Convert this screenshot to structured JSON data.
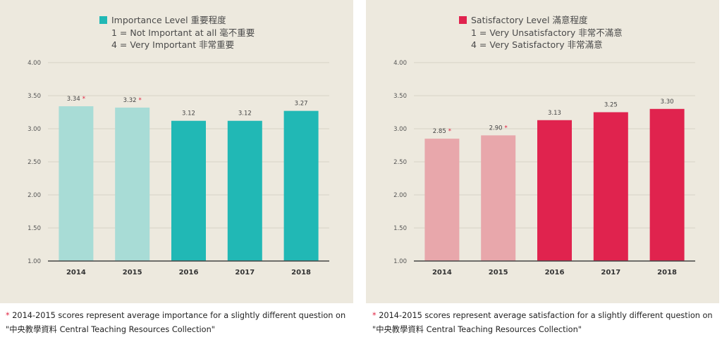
{
  "chart_data": [
    {
      "type": "bar",
      "legend_title": "Importance Level 重要程度",
      "legend_lines": [
        "1 = Not Important at all 毫不重要",
        "4 = Very Important 非常重要"
      ],
      "legend_placement": "top-center",
      "categories": [
        "2014",
        "2015",
        "2016",
        "2017",
        "2018"
      ],
      "values": [
        3.34,
        3.32,
        3.12,
        3.12,
        3.27
      ],
      "value_labels": [
        "3.34",
        "3.32",
        "3.12",
        "3.12",
        "3.27"
      ],
      "asterisk": [
        true,
        true,
        false,
        false,
        false
      ],
      "ylim": [
        1.0,
        4.0
      ],
      "yticks": [
        "1.00",
        "1.50",
        "2.00",
        "2.50",
        "3.00",
        "3.50",
        "4.00"
      ],
      "grid": true,
      "colors": {
        "primary": "#21b8b5",
        "faded": "#a8dcd6"
      },
      "xlabel": "",
      "ylabel": ""
    },
    {
      "type": "bar",
      "legend_title": "Satisfactory Level 滿意程度",
      "legend_lines": [
        "1 = Very Unsatisfactory 非常不滿意",
        "4 = Very Satisfactory 非常滿意"
      ],
      "legend_placement": "top-center",
      "categories": [
        "2014",
        "2015",
        "2016",
        "2017",
        "2018"
      ],
      "values": [
        2.85,
        2.9,
        3.13,
        3.25,
        3.3
      ],
      "value_labels": [
        "2.85",
        "2.90",
        "3.13",
        "3.25",
        "3.30"
      ],
      "asterisk": [
        true,
        true,
        false,
        false,
        false
      ],
      "ylim": [
        1.0,
        4.0
      ],
      "yticks": [
        "1.00",
        "1.50",
        "2.00",
        "2.50",
        "3.00",
        "3.50",
        "4.00"
      ],
      "grid": true,
      "colors": {
        "primary": "#e0234e",
        "faded": "#e8a7ab"
      },
      "xlabel": "",
      "ylabel": ""
    }
  ],
  "footnotes": {
    "marker": "*",
    "left": "2014-2015 scores represent average importance for a slightly different question on \"中央教學資料 Central Teaching Resources Collection\"",
    "right": "2014-2015 scores represent average satisfaction for a slightly different question on \"中央教學資料 Central Teaching Resources Collection\""
  }
}
